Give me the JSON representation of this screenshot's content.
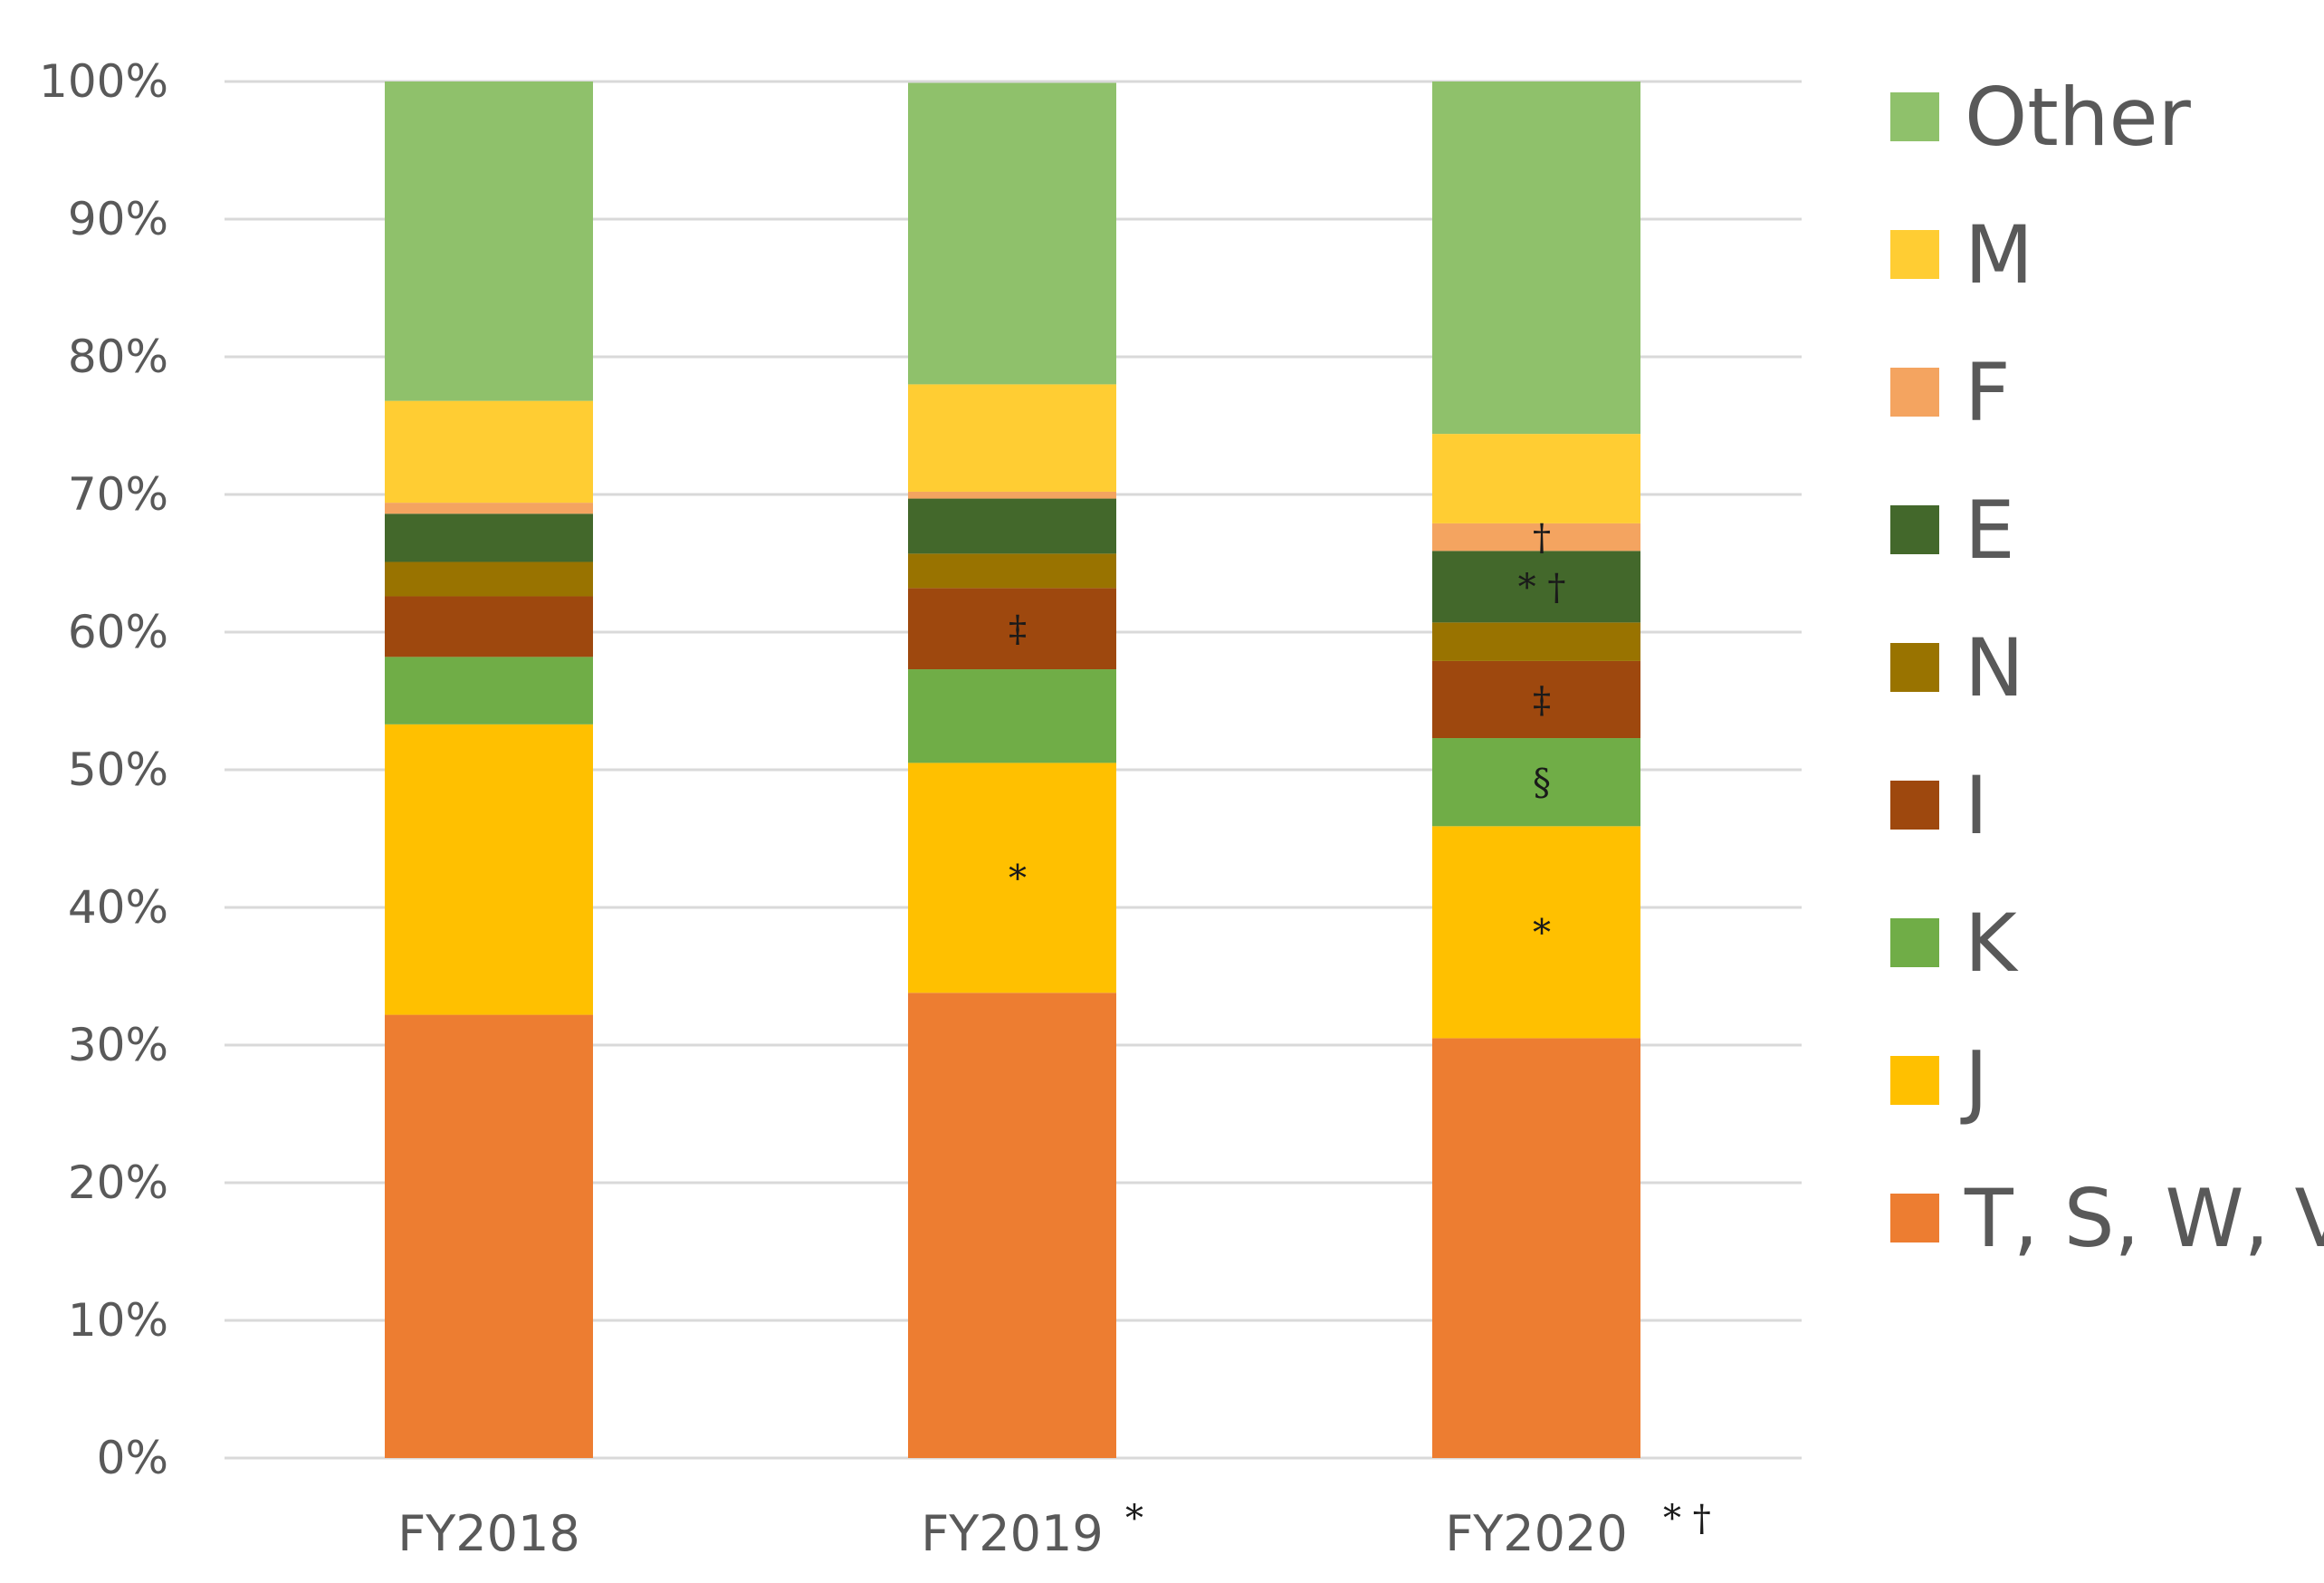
{
  "chart_data": {
    "type": "bar",
    "stacked": true,
    "title": "",
    "xlabel": "",
    "ylabel": "",
    "ylim": [
      0,
      100
    ],
    "y_ticks": [
      "0%",
      "10%",
      "20%",
      "30%",
      "40%",
      "50%",
      "60%",
      "70%",
      "80%",
      "90%",
      "100%"
    ],
    "grid": true,
    "legend_position": "right",
    "categories": [
      "FY2018",
      "FY2019",
      "FY2020"
    ],
    "category_annotations": [
      "",
      "*",
      "* †"
    ],
    "series": [
      {
        "name": "T, S, W, V",
        "color": "#ED7D31",
        "values": [
          32.2,
          33.8,
          30.5
        ]
      },
      {
        "name": "J",
        "color": "#FFC000",
        "values": [
          21.1,
          16.7,
          15.4
        ]
      },
      {
        "name": "K",
        "color": "#70AD47",
        "values": [
          4.9,
          6.8,
          6.4
        ]
      },
      {
        "name": "I",
        "color": "#9E480E",
        "values": [
          4.4,
          5.9,
          5.6
        ]
      },
      {
        "name": "N",
        "color": "#997300",
        "values": [
          2.5,
          2.5,
          2.8
        ]
      },
      {
        "name": "E",
        "color": "#43682B",
        "values": [
          3.5,
          4.0,
          5.2
        ]
      },
      {
        "name": "F",
        "color": "#F4A460",
        "values": [
          0.8,
          0.5,
          2.0
        ]
      },
      {
        "name": "M",
        "color": "#FFCD33",
        "values": [
          7.4,
          7.8,
          6.5
        ]
      },
      {
        "name": "Other",
        "color": "#8FC16B",
        "values": [
          23.2,
          21.9,
          25.6
        ]
      }
    ],
    "annotations": [
      {
        "category": "FY2019",
        "series": "J",
        "text": "*"
      },
      {
        "category": "FY2019",
        "series": "I",
        "text": "‡"
      },
      {
        "category": "FY2020",
        "series": "J",
        "text": "*"
      },
      {
        "category": "FY2020",
        "series": "K",
        "text": "§"
      },
      {
        "category": "FY2020",
        "series": "I",
        "text": "‡"
      },
      {
        "category": "FY2020",
        "series": "E",
        "text": "* †"
      },
      {
        "category": "FY2020",
        "series": "F",
        "text": "†"
      }
    ]
  }
}
